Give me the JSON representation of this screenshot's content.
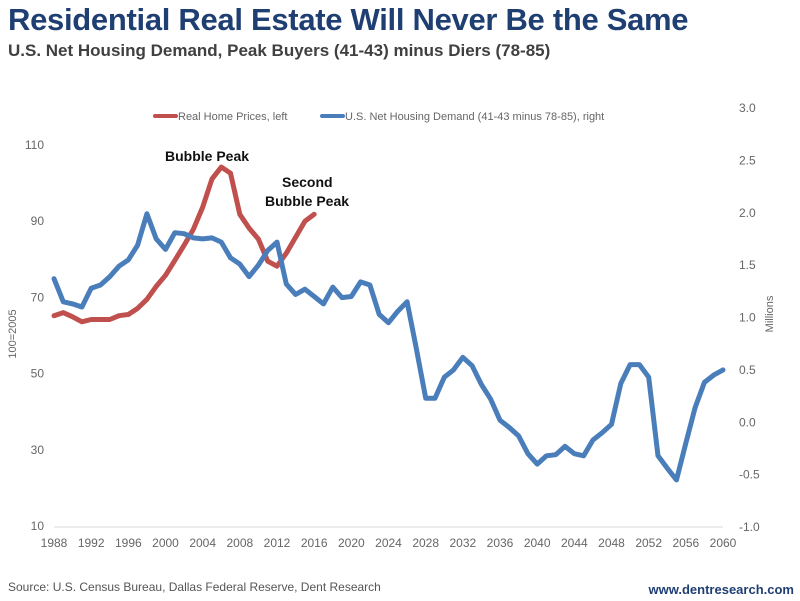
{
  "header": {
    "title": "Residential Real Estate Will Never Be the Same",
    "subtitle": "U.S. Net Housing Demand, Peak Buyers (41-43) minus Diers (78-85)"
  },
  "footer": {
    "source": "Source: U.S. Census Bureau, Dallas Federal Reserve, Dent Research",
    "site": "www.dentresearch.com"
  },
  "chart_data": {
    "type": "line",
    "title": "Residential Real Estate Will Never Be the Same",
    "subtitle": "U.S. Net Housing Demand, Peak Buyers (41-43) minus Diers (78-85)",
    "xlabel": "",
    "ylabel_left": "100=2005",
    "ylabel_right": "Millions",
    "xlim": [
      1988,
      2060
    ],
    "ylim_left": [
      10,
      110
    ],
    "ylim_right": [
      -1.0,
      3.0
    ],
    "x_ticks": [
      "1988",
      "1992",
      "1996",
      "2000",
      "2004",
      "2008",
      "2012",
      "2016",
      "2020",
      "2024",
      "2028",
      "2032",
      "2036",
      "2040",
      "2044",
      "2048",
      "2052",
      "2056",
      "2060"
    ],
    "y_ticks_left": [
      "110",
      "90",
      "70",
      "50",
      "30",
      "10"
    ],
    "y_ticks_right": [
      "3.0",
      "2.5",
      "2.0",
      "1.5",
      "1.0",
      "0.5",
      "0.0",
      "-0.5",
      "-1.0"
    ],
    "grid": false,
    "legend_position": "top",
    "annotations": [
      {
        "text": "Bubble Peak",
        "x": 2006,
        "y": 104.2,
        "axis": "left"
      },
      {
        "text": "Second",
        "x": 2016,
        "y": 91.8,
        "axis": "left"
      },
      {
        "text": "Bubble Peak",
        "x": 2016,
        "y": 91.8,
        "axis": "left"
      }
    ],
    "series": [
      {
        "name": "Real Home Prices, left",
        "axis": "left",
        "color": "#c0504d",
        "x": [
          1988,
          1989,
          1990,
          1991,
          1992,
          1993,
          1994,
          1995,
          1996,
          1997,
          1998,
          1999,
          2000,
          2001,
          2002,
          2003,
          2004,
          2005,
          2006,
          2007,
          2008,
          2009,
          2010,
          2011,
          2012,
          2013,
          2014,
          2015,
          2016
        ],
        "values": [
          65.2,
          66.0,
          64.9,
          63.6,
          64.2,
          64.2,
          64.2,
          65.2,
          65.5,
          67.1,
          69.5,
          72.9,
          75.8,
          79.7,
          83.7,
          87.9,
          93.7,
          101.1,
          104.2,
          102.6,
          91.8,
          88.2,
          85.3,
          79.5,
          78.2,
          81.6,
          85.8,
          90.0,
          91.8
        ]
      },
      {
        "name": "U.S. Net Housing Demand (41-43 minus 78-85), right",
        "axis": "right",
        "color": "#4a7ebb",
        "x": [
          1988,
          1989,
          1990,
          1991,
          1992,
          1993,
          1994,
          1995,
          1996,
          1997,
          1998,
          1999,
          2000,
          2001,
          2002,
          2003,
          2004,
          2005,
          2006,
          2007,
          2008,
          2009,
          2010,
          2011,
          2012,
          2013,
          2014,
          2015,
          2016,
          2017,
          2018,
          2019,
          2020,
          2021,
          2022,
          2023,
          2024,
          2025,
          2026,
          2027,
          2028,
          2029,
          2030,
          2031,
          2032,
          2033,
          2034,
          2035,
          2036,
          2037,
          2038,
          2039,
          2040,
          2041,
          2042,
          2043,
          2044,
          2045,
          2046,
          2047,
          2048,
          2049,
          2050,
          2051,
          2052,
          2053,
          2054,
          2055,
          2056,
          2057,
          2058,
          2059,
          2060
        ],
        "values": [
          1.37,
          1.15,
          1.13,
          1.1,
          1.28,
          1.31,
          1.39,
          1.49,
          1.55,
          1.69,
          1.99,
          1.75,
          1.65,
          1.81,
          1.8,
          1.76,
          1.75,
          1.76,
          1.72,
          1.57,
          1.51,
          1.39,
          1.5,
          1.64,
          1.72,
          1.32,
          1.22,
          1.27,
          1.2,
          1.13,
          1.29,
          1.19,
          1.2,
          1.34,
          1.31,
          1.03,
          0.95,
          1.06,
          1.15,
          0.7,
          0.23,
          0.23,
          0.43,
          0.5,
          0.62,
          0.54,
          0.36,
          0.22,
          0.02,
          -0.05,
          -0.13,
          -0.3,
          -0.4,
          -0.32,
          -0.31,
          -0.23,
          -0.3,
          -0.32,
          -0.17,
          -0.1,
          -0.02,
          0.37,
          0.55,
          0.55,
          0.43,
          -0.32,
          -0.44,
          -0.55,
          -0.2,
          0.14,
          0.38,
          0.45,
          0.5
        ]
      }
    ]
  }
}
